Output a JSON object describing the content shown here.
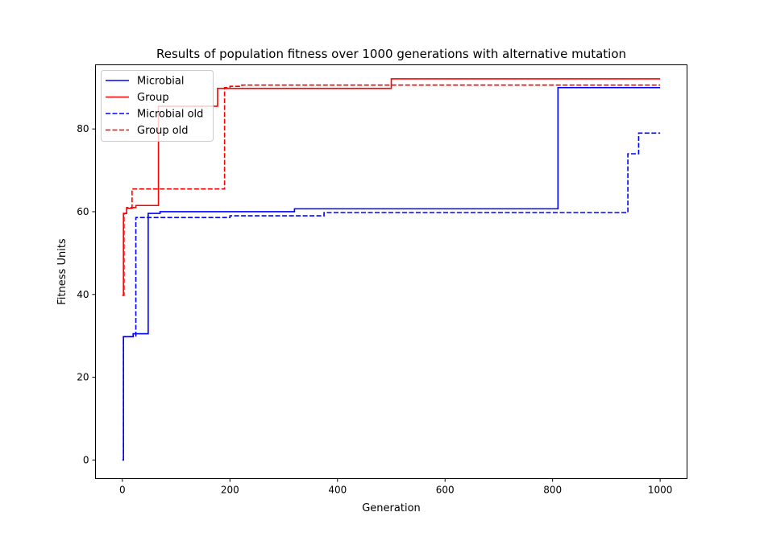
{
  "chart_data": {
    "type": "line",
    "title": "Results of population fitness over 1000 generations with alternative mutation",
    "xlabel": "Generation",
    "ylabel": "Fitness Units",
    "xlim": [
      -50,
      1050
    ],
    "ylim": [
      -4.5,
      95.5
    ],
    "xticks": [
      0,
      200,
      400,
      600,
      800,
      1000
    ],
    "yticks": [
      0,
      20,
      40,
      60,
      80
    ],
    "grid": false,
    "legend_position": "top-left",
    "series": [
      {
        "name": "Microbial",
        "color": "#0000ff",
        "style": "solid",
        "step": "post",
        "x": [
          0,
          2,
          20,
          48,
          70,
          320,
          810,
          1000
        ],
        "y": [
          0,
          29.8,
          30.5,
          59.6,
          60,
          60.7,
          90,
          90
        ]
      },
      {
        "name": "Group",
        "color": "#ff0000",
        "style": "solid",
        "step": "post",
        "x": [
          0,
          2,
          8,
          18,
          25,
          67,
          177,
          500,
          1000
        ],
        "y": [
          39.8,
          59.6,
          60.8,
          61,
          61.5,
          85.5,
          89.8,
          92.1,
          92.1
        ]
      },
      {
        "name": "Microbial old",
        "color": "#0000ff",
        "style": "dashed",
        "step": "post",
        "x": [
          0,
          2,
          25,
          200,
          375,
          940,
          960,
          1000
        ],
        "y": [
          0,
          29.8,
          58.6,
          59,
          59.8,
          74,
          79,
          79
        ]
      },
      {
        "name": "Group old",
        "color": "#ff0000",
        "style": "dashed",
        "step": "post",
        "x": [
          0,
          3,
          8,
          18,
          190,
          200,
          222,
          1000
        ],
        "y": [
          39.8,
          59.6,
          61,
          65.5,
          90,
          90.3,
          90.6,
          90.6
        ]
      }
    ]
  }
}
